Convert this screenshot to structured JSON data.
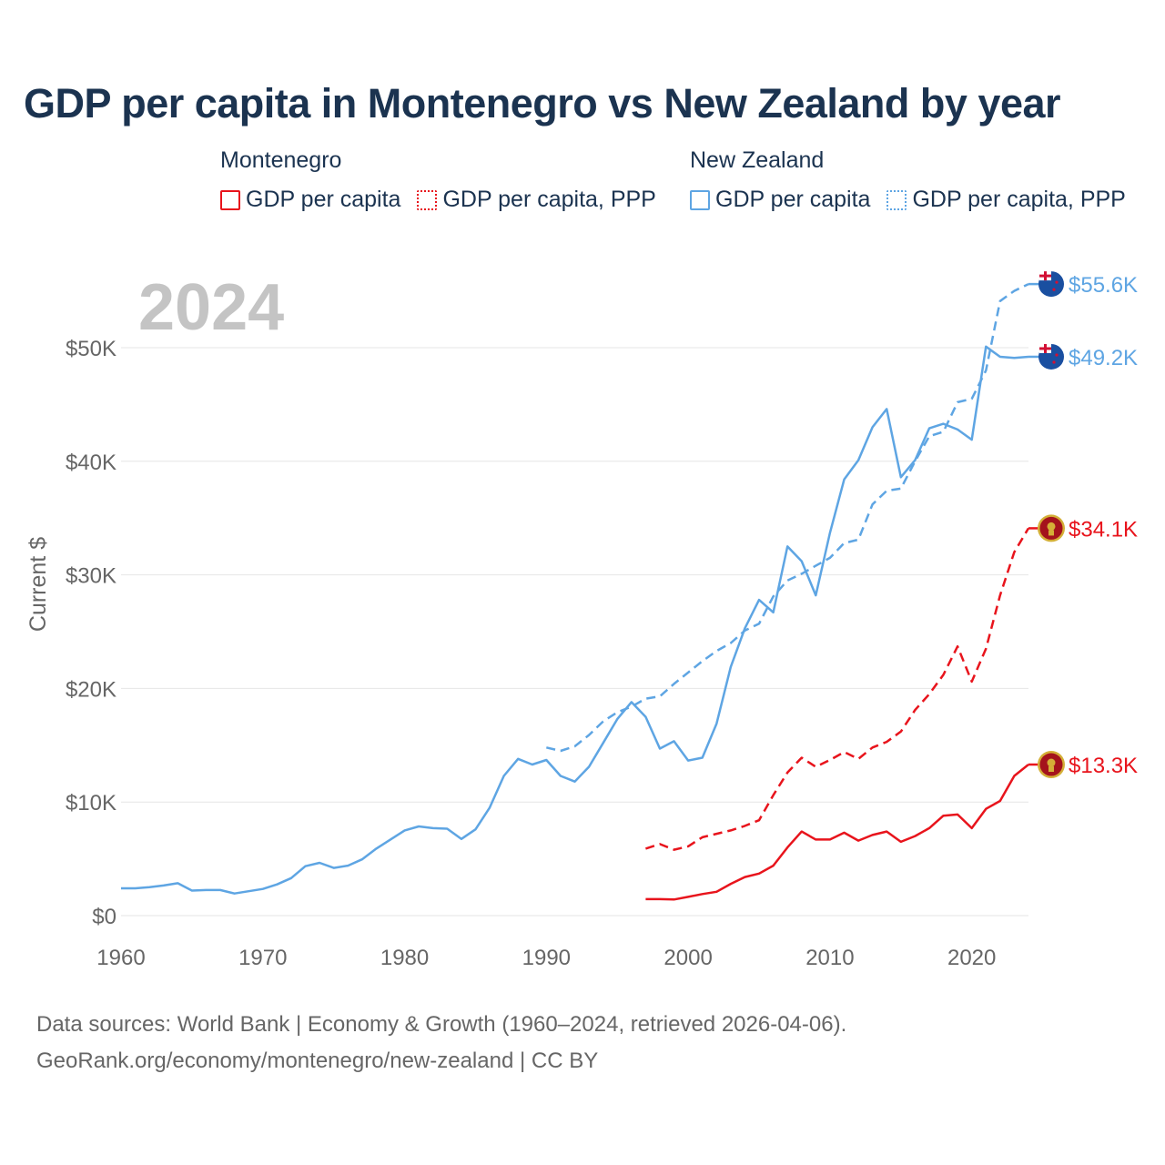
{
  "title": "GDP per capita in Montenegro vs New Zealand by year",
  "legend": {
    "groups": [
      {
        "country": "Montenegro",
        "color": "#e8141c",
        "items": [
          "GDP per capita",
          "GDP per capita, PPP"
        ]
      },
      {
        "country": "New Zealand",
        "color": "#5ea5e3",
        "items": [
          "GDP per capita",
          "GDP per capita, PPP"
        ]
      }
    ]
  },
  "footer": {
    "line1": "Data sources: World Bank | Economy & Growth (1960–2024, retrieved 2026-04-06).",
    "line2": "GeoRank.org/economy/montenegro/new-zealand | CC BY"
  },
  "chart_data": {
    "type": "line",
    "year_label": "2024",
    "ylabel": "Current $",
    "xlim": [
      1960,
      2024
    ],
    "ylim": [
      0,
      55000
    ],
    "x_ticks": [
      1960,
      1970,
      1980,
      1990,
      2000,
      2010,
      2020
    ],
    "x_tick_labels": [
      "1960",
      "1970",
      "1980",
      "1990",
      "2000",
      "2010",
      "2020"
    ],
    "y_ticks": [
      0,
      10000,
      20000,
      30000,
      40000,
      50000
    ],
    "y_tick_labels": [
      "$0",
      "$10K",
      "$20K",
      "$30K",
      "$40K",
      "$50K"
    ],
    "series": [
      {
        "name": "New Zealand GDP per capita",
        "country": "New Zealand",
        "color": "#5ea5e3",
        "dash": "solid",
        "end_label": "$49.2K",
        "icon": "new-zealand-flag-icon",
        "x": [
          1960,
          1961,
          1962,
          1963,
          1964,
          1965,
          1966,
          1967,
          1968,
          1969,
          1970,
          1971,
          1972,
          1973,
          1974,
          1975,
          1976,
          1977,
          1978,
          1979,
          1980,
          1981,
          1982,
          1983,
          1984,
          1985,
          1986,
          1987,
          1988,
          1989,
          1990,
          1991,
          1992,
          1993,
          1994,
          1995,
          1996,
          1997,
          1998,
          1999,
          2000,
          2001,
          2002,
          2003,
          2004,
          2005,
          2006,
          2007,
          2008,
          2009,
          2010,
          2011,
          2012,
          2013,
          2014,
          2015,
          2016,
          2017,
          2018,
          2019,
          2020,
          2021,
          2022,
          2023,
          2024
        ],
        "y": [
          2400,
          2400,
          2500,
          2650,
          2850,
          2200,
          2250,
          2250,
          1950,
          2150,
          2350,
          2750,
          3300,
          4350,
          4650,
          4200,
          4400,
          4950,
          5900,
          6700,
          7500,
          7850,
          7700,
          7650,
          6750,
          7600,
          9500,
          12300,
          13800,
          13300,
          13700,
          12300,
          11800,
          13100,
          15200,
          17300,
          18800,
          17500,
          14700,
          15350,
          13650,
          13900,
          16900,
          21900,
          25300,
          27800,
          26700,
          32500,
          31200,
          28200,
          33700,
          38400,
          40100,
          43000,
          44600,
          38600,
          40100,
          42900,
          43300,
          42800,
          41900,
          50100,
          49200,
          49100,
          49200
        ]
      },
      {
        "name": "New Zealand GDP per capita, PPP",
        "country": "New Zealand",
        "color": "#5ea5e3",
        "dash": "dashed",
        "end_label": "$55.6K",
        "icon": "new-zealand-flag-icon",
        "x": [
          1990,
          1991,
          1992,
          1993,
          1994,
          1995,
          1996,
          1997,
          1998,
          1999,
          2000,
          2001,
          2002,
          2003,
          2004,
          2005,
          2006,
          2007,
          2008,
          2009,
          2010,
          2011,
          2012,
          2013,
          2014,
          2015,
          2016,
          2017,
          2018,
          2019,
          2020,
          2021,
          2022,
          2023,
          2024
        ],
        "y": [
          14800,
          14500,
          14900,
          15900,
          17100,
          17900,
          18400,
          19100,
          19300,
          20400,
          21400,
          22400,
          23300,
          24000,
          25100,
          25700,
          28100,
          29500,
          30100,
          30800,
          31500,
          32800,
          33100,
          36200,
          37400,
          37600,
          40000,
          42200,
          42600,
          45200,
          45500,
          48000,
          54100,
          55000,
          55600
        ]
      },
      {
        "name": "Montenegro GDP per capita",
        "country": "Montenegro",
        "color": "#e8141c",
        "dash": "solid",
        "end_label": "$13.3K",
        "icon": "montenegro-flag-icon",
        "x": [
          1997,
          1998,
          1999,
          2000,
          2001,
          2002,
          2003,
          2004,
          2005,
          2006,
          2007,
          2008,
          2009,
          2010,
          2011,
          2012,
          2013,
          2014,
          2015,
          2016,
          2017,
          2018,
          2019,
          2020,
          2021,
          2022,
          2023,
          2024
        ],
        "y": [
          1450,
          1450,
          1420,
          1650,
          1900,
          2100,
          2800,
          3400,
          3700,
          4400,
          6000,
          7400,
          6700,
          6700,
          7300,
          6600,
          7100,
          7400,
          6500,
          7000,
          7700,
          8800,
          8900,
          7700,
          9400,
          10100,
          12300,
          13300
        ]
      },
      {
        "name": "Montenegro GDP per capita, PPP",
        "country": "Montenegro",
        "color": "#e8141c",
        "dash": "dashed",
        "end_label": "$34.1K",
        "icon": "montenegro-flag-icon",
        "x": [
          1997,
          1998,
          1999,
          2000,
          2001,
          2002,
          2003,
          2004,
          2005,
          2006,
          2007,
          2008,
          2009,
          2010,
          2011,
          2012,
          2013,
          2014,
          2015,
          2016,
          2017,
          2018,
          2019,
          2020,
          2021,
          2022,
          2023,
          2024
        ],
        "y": [
          5900,
          6300,
          5800,
          6100,
          6900,
          7200,
          7500,
          7900,
          8400,
          10600,
          12600,
          13900,
          13100,
          13700,
          14400,
          13800,
          14800,
          15300,
          16200,
          18100,
          19500,
          21200,
          23700,
          20600,
          23500,
          28200,
          32000,
          34100
        ]
      }
    ]
  }
}
